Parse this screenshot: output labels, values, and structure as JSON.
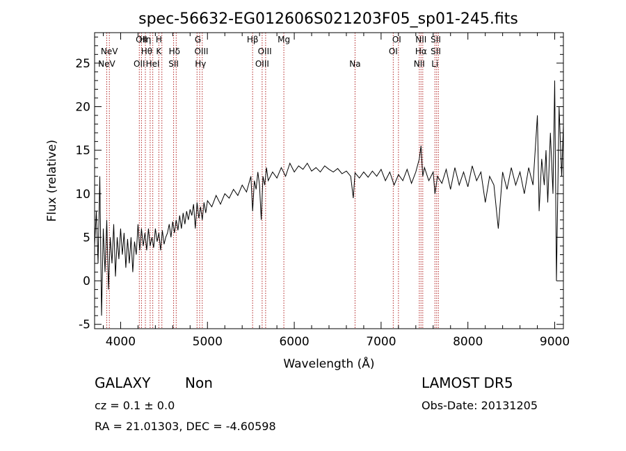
{
  "chart_data": {
    "type": "line",
    "title": "spec-56632-EG012606S021203F05_sp01-245.fits",
    "xlabel": "Wavelength (Å)",
    "ylabel": "Flux (relative)",
    "xlim": [
      3700,
      9100
    ],
    "ylim": [
      -5.5,
      28.5
    ],
    "xticks": [
      4000,
      5000,
      6000,
      7000,
      8000,
      9000
    ],
    "yticks": [
      -5,
      0,
      5,
      10,
      15,
      20,
      25
    ],
    "grid": false,
    "series": [
      {
        "color": "#000000",
        "points": [
          [
            3700,
            4.0
          ],
          [
            3720,
            8.0
          ],
          [
            3740,
            2.0
          ],
          [
            3760,
            12.0
          ],
          [
            3780,
            -4.0
          ],
          [
            3800,
            6.0
          ],
          [
            3820,
            1.0
          ],
          [
            3840,
            7.0
          ],
          [
            3860,
            -1.0
          ],
          [
            3880,
            5.0
          ],
          [
            3900,
            2.0
          ],
          [
            3920,
            6.5
          ],
          [
            3940,
            0.5
          ],
          [
            3960,
            5.0
          ],
          [
            3980,
            2.5
          ],
          [
            4000,
            6.0
          ],
          [
            4020,
            3.0
          ],
          [
            4040,
            5.5
          ],
          [
            4060,
            1.5
          ],
          [
            4080,
            4.8
          ],
          [
            4100,
            2.0
          ],
          [
            4120,
            5.0
          ],
          [
            4140,
            1.0
          ],
          [
            4160,
            4.5
          ],
          [
            4180,
            3.0
          ],
          [
            4200,
            6.5
          ],
          [
            4220,
            3.5
          ],
          [
            4240,
            6.0
          ],
          [
            4260,
            4.0
          ],
          [
            4280,
            5.5
          ],
          [
            4300,
            3.5
          ],
          [
            4320,
            6.0
          ],
          [
            4340,
            4.0
          ],
          [
            4360,
            5.0
          ],
          [
            4380,
            3.8
          ],
          [
            4400,
            6.0
          ],
          [
            4420,
            4.5
          ],
          [
            4440,
            5.5
          ],
          [
            4460,
            3.5
          ],
          [
            4480,
            5.8
          ],
          [
            4500,
            4.2
          ],
          [
            4520,
            5.0
          ],
          [
            4540,
            5.5
          ],
          [
            4560,
            6.5
          ],
          [
            4580,
            5.0
          ],
          [
            4600,
            6.8
          ],
          [
            4620,
            5.5
          ],
          [
            4640,
            7.0
          ],
          [
            4660,
            5.8
          ],
          [
            4680,
            7.5
          ],
          [
            4700,
            6.0
          ],
          [
            4720,
            7.8
          ],
          [
            4740,
            6.5
          ],
          [
            4760,
            8.0
          ],
          [
            4780,
            7.0
          ],
          [
            4800,
            8.2
          ],
          [
            4820,
            7.5
          ],
          [
            4840,
            8.8
          ],
          [
            4860,
            6.0
          ],
          [
            4880,
            9.0
          ],
          [
            4900,
            7.2
          ],
          [
            4920,
            8.5
          ],
          [
            4940,
            7.0
          ],
          [
            4960,
            9.0
          ],
          [
            4980,
            7.8
          ],
          [
            5000,
            9.2
          ],
          [
            5050,
            8.5
          ],
          [
            5100,
            9.8
          ],
          [
            5150,
            8.8
          ],
          [
            5200,
            10.0
          ],
          [
            5250,
            9.5
          ],
          [
            5300,
            10.5
          ],
          [
            5350,
            9.8
          ],
          [
            5400,
            11.0
          ],
          [
            5450,
            10.2
          ],
          [
            5500,
            12.0
          ],
          [
            5520,
            8.0
          ],
          [
            5540,
            11.5
          ],
          [
            5560,
            10.5
          ],
          [
            5580,
            12.5
          ],
          [
            5600,
            11.0
          ],
          [
            5620,
            7.0
          ],
          [
            5640,
            12.0
          ],
          [
            5660,
            11.0
          ],
          [
            5680,
            13.0
          ],
          [
            5700,
            11.5
          ],
          [
            5750,
            12.5
          ],
          [
            5800,
            11.8
          ],
          [
            5850,
            13.0
          ],
          [
            5900,
            12.0
          ],
          [
            5950,
            13.5
          ],
          [
            6000,
            12.5
          ],
          [
            6050,
            13.2
          ],
          [
            6100,
            12.8
          ],
          [
            6150,
            13.5
          ],
          [
            6200,
            12.6
          ],
          [
            6250,
            13.0
          ],
          [
            6300,
            12.5
          ],
          [
            6350,
            13.2
          ],
          [
            6400,
            12.8
          ],
          [
            6450,
            12.5
          ],
          [
            6500,
            12.9
          ],
          [
            6550,
            12.3
          ],
          [
            6600,
            12.6
          ],
          [
            6650,
            12.0
          ],
          [
            6680,
            9.5
          ],
          [
            6700,
            12.4
          ],
          [
            6750,
            11.8
          ],
          [
            6800,
            12.5
          ],
          [
            6850,
            11.9
          ],
          [
            6900,
            12.6
          ],
          [
            6950,
            12.0
          ],
          [
            7000,
            12.8
          ],
          [
            7050,
            11.5
          ],
          [
            7100,
            12.5
          ],
          [
            7150,
            11.0
          ],
          [
            7200,
            12.2
          ],
          [
            7250,
            11.5
          ],
          [
            7300,
            12.8
          ],
          [
            7350,
            11.2
          ],
          [
            7400,
            12.5
          ],
          [
            7440,
            14.0
          ],
          [
            7460,
            15.5
          ],
          [
            7480,
            12.0
          ],
          [
            7500,
            13.0
          ],
          [
            7550,
            11.5
          ],
          [
            7600,
            12.5
          ],
          [
            7620,
            10.0
          ],
          [
            7650,
            12.0
          ],
          [
            7700,
            11.2
          ],
          [
            7750,
            12.8
          ],
          [
            7800,
            10.5
          ],
          [
            7850,
            13.0
          ],
          [
            7900,
            11.0
          ],
          [
            7950,
            12.5
          ],
          [
            8000,
            10.8
          ],
          [
            8050,
            13.2
          ],
          [
            8100,
            11.5
          ],
          [
            8150,
            12.5
          ],
          [
            8200,
            9.0
          ],
          [
            8250,
            12.0
          ],
          [
            8300,
            11.0
          ],
          [
            8350,
            6.0
          ],
          [
            8400,
            12.5
          ],
          [
            8450,
            10.5
          ],
          [
            8500,
            13.0
          ],
          [
            8550,
            11.0
          ],
          [
            8600,
            12.5
          ],
          [
            8650,
            10.0
          ],
          [
            8700,
            13.0
          ],
          [
            8750,
            11.0
          ],
          [
            8800,
            19.0
          ],
          [
            8820,
            8.0
          ],
          [
            8850,
            14.0
          ],
          [
            8880,
            11.0
          ],
          [
            8900,
            15.0
          ],
          [
            8920,
            9.0
          ],
          [
            8950,
            17.0
          ],
          [
            8980,
            10.0
          ],
          [
            9000,
            23.0
          ],
          [
            9020,
            0.0
          ],
          [
            9050,
            20.0
          ],
          [
            9080,
            12.0
          ],
          [
            9100,
            18.0
          ]
        ]
      }
    ],
    "emission_lines": [
      {
        "label": "NeV",
        "x": 3840,
        "row": 2
      },
      {
        "label": "NeV",
        "x": 3870,
        "row": 1
      },
      {
        "label": "OII",
        "x": 4240,
        "row": 0
      },
      {
        "label": "OII",
        "x": 4215,
        "row": 2
      },
      {
        "label": "Hη",
        "x": 4285,
        "row": 0
      },
      {
        "label": "Hθ",
        "x": 4300,
        "row": 1
      },
      {
        "label": "HeI",
        "x": 4370,
        "row": 2
      },
      {
        "label": "H",
        "x": 4440,
        "row": 0
      },
      {
        "label": "K",
        "x": 4440,
        "row": 1
      },
      {
        "label": "Hδ",
        "x": 4620,
        "row": 1
      },
      {
        "label": "SII",
        "x": 4610,
        "row": 2
      },
      {
        "label": "G",
        "x": 4890,
        "row": 0
      },
      {
        "label": "OIII",
        "x": 4930,
        "row": 1
      },
      {
        "label": "Hγ",
        "x": 4920,
        "row": 2
      },
      {
        "label": "Hβ",
        "x": 5520,
        "row": 0
      },
      {
        "label": "OIII",
        "x": 5660,
        "row": 1
      },
      {
        "label": "OIII",
        "x": 5630,
        "row": 2
      },
      {
        "label": "Mg",
        "x": 5880,
        "row": 0
      },
      {
        "label": "Na",
        "x": 6700,
        "row": 2
      },
      {
        "label": "OI",
        "x": 7180,
        "row": 0
      },
      {
        "label": "OI",
        "x": 7140,
        "row": 1
      },
      {
        "label": "NII",
        "x": 7460,
        "row": 0
      },
      {
        "label": "Hα",
        "x": 7460,
        "row": 1
      },
      {
        "label": "NII",
        "x": 7440,
        "row": 2
      },
      {
        "label": "SII",
        "x": 7630,
        "row": 0
      },
      {
        "label": "SII",
        "x": 7630,
        "row": 1
      },
      {
        "label": "Li",
        "x": 7620,
        "row": 2
      }
    ],
    "line_markers": [
      3840,
      3870,
      4215,
      4240,
      4285,
      4340,
      4370,
      4440,
      4475,
      4610,
      4640,
      4880,
      4910,
      4940,
      5520,
      5630,
      5670,
      5880,
      6700,
      7140,
      7200,
      7440,
      7460,
      7480,
      7620,
      7640,
      7660
    ]
  },
  "info": {
    "class_label": "GALAXY",
    "subclass_label": "Non",
    "survey": "LAMOST DR5",
    "cz": "cz = 0.1 ± 0.0",
    "obs_date": "Obs-Date: 20131205",
    "coords": "RA =  21.01303, DEC =  -4.60598"
  }
}
